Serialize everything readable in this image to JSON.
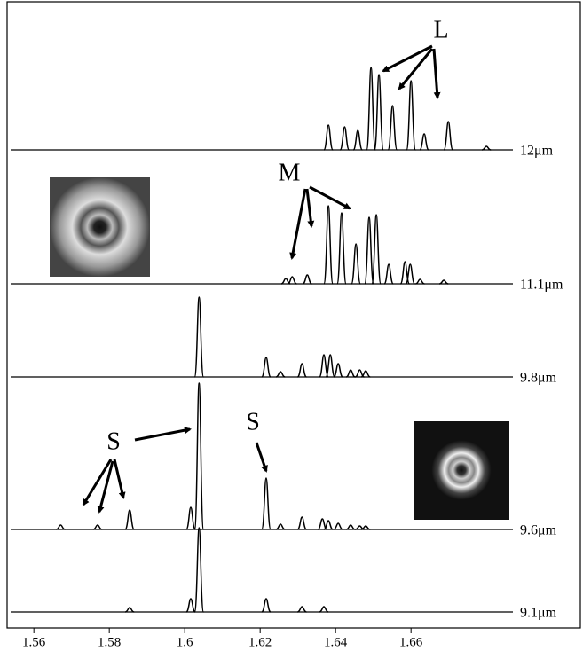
{
  "chart_data": {
    "type": "spectra",
    "xlim": [
      1.5529,
      1.7049
    ],
    "xticks": [
      1.56,
      1.58,
      1.6,
      1.62,
      1.64,
      1.66
    ],
    "color": "#000000",
    "series": [
      {
        "name": "12μm",
        "x": [
          1.6381,
          1.6424,
          1.6459,
          1.6494,
          1.6515,
          1.6551,
          1.66,
          1.6635,
          1.6699,
          1.68
        ],
        "values": [
          28,
          26,
          22,
          93,
          85,
          50,
          78,
          18,
          32,
          4
        ]
      },
      {
        "name": "11.1μm",
        "x": [
          1.6268,
          1.6285,
          1.6325,
          1.6381,
          1.6416,
          1.6454,
          1.6489,
          1.6508,
          1.6541,
          1.6584,
          1.6598,
          1.6624,
          1.6687
        ],
        "values": [
          6,
          8,
          10,
          88,
          80,
          45,
          75,
          78,
          22,
          25,
          22,
          5,
          4
        ]
      },
      {
        "name": "9.8μm",
        "x": [
          1.6038,
          1.6216,
          1.6254,
          1.6311,
          1.6369,
          1.6386,
          1.6407,
          1.644,
          1.6464,
          1.648
        ],
        "values": [
          90,
          22,
          6,
          15,
          25,
          25,
          15,
          8,
          8,
          7
        ]
      },
      {
        "name": "9.6μm",
        "x": [
          1.5671,
          1.5769,
          1.5854,
          1.6016,
          1.6038,
          1.6216,
          1.6254,
          1.6311,
          1.6365,
          1.6381,
          1.6407,
          1.644,
          1.6464,
          1.648
        ],
        "values": [
          5,
          5,
          22,
          25,
          165,
          58,
          6,
          14,
          12,
          10,
          7,
          5,
          4,
          4
        ]
      },
      {
        "name": "9.1μm",
        "x": [
          1.5854,
          1.6016,
          1.6038,
          1.6216,
          1.6311,
          1.6369
        ],
        "values": [
          5,
          15,
          95,
          15,
          6,
          6
        ]
      }
    ],
    "annotations": [
      "L",
      "M",
      "S",
      "S"
    ]
  }
}
